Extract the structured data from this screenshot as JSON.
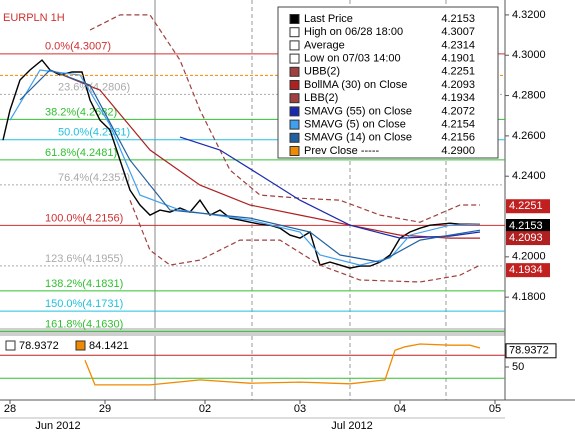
{
  "chart_data": {
    "type": "line",
    "title": "EURPLN 1H",
    "xlim": [
      0,
      101
    ],
    "xticks": [
      {
        "value": 2,
        "label": "28"
      },
      {
        "value": 21,
        "label": "29"
      },
      {
        "value": 41,
        "label": "02"
      },
      {
        "value": 60,
        "label": "03"
      },
      {
        "value": 80,
        "label": "04"
      },
      {
        "value": 99,
        "label": "05"
      }
    ],
    "x_groups": [
      {
        "value": 11.6,
        "label": "Jun 2012"
      },
      {
        "value": 70.4,
        "label": "Jul 2012"
      }
    ],
    "ylim": [
      4.1647,
      4.3274
    ],
    "yticks": [
      {
        "value": 4.32,
        "label": "4.3200"
      },
      {
        "value": 4.3,
        "label": "4.3000"
      },
      {
        "value": 4.28,
        "label": "4.2800"
      },
      {
        "value": 4.26,
        "label": "4.2600"
      },
      {
        "value": 4.24,
        "label": "4.2400"
      },
      {
        "value": 4.2,
        "label": "4.2000"
      },
      {
        "value": 4.18,
        "label": "4.1800"
      }
    ],
    "fib_levels": [
      {
        "value": 4.3007,
        "label": "0.0%(4.3007)",
        "color": "#d03030"
      },
      {
        "value": 4.2806,
        "label": "23.6%(4.2806)",
        "color": "#aaaaaa"
      },
      {
        "value": 4.2682,
        "label": "38.2%(4.2682)",
        "color": "#30c030"
      },
      {
        "value": 4.2581,
        "label": "50.0%(4.2581)",
        "color": "#20c0e0"
      },
      {
        "value": 4.2481,
        "label": "61.8%(4.2481)",
        "color": "#30c030"
      },
      {
        "value": 4.2357,
        "label": "76.4%(4.2357)",
        "color": "#aaaaaa"
      },
      {
        "value": 4.2156,
        "label": "100.0%(4.2156)",
        "color": "#d03030"
      },
      {
        "value": 4.1955,
        "label": "123.6%(4.1955)",
        "color": "#aaaaaa"
      },
      {
        "value": 4.1831,
        "label": "138.2%(4.1831)",
        "color": "#30c030"
      },
      {
        "value": 4.1731,
        "label": "150.0%(4.1731)",
        "color": "#20c0e0"
      },
      {
        "value": 4.163,
        "label": "161.8%(4.1630)",
        "color": "#30c030"
      }
    ],
    "series": [
      {
        "name": "Last Price",
        "legend_value": "4.2153",
        "color": "#000000",
        "x": [
          0.6,
          2,
          4,
          6,
          8.4,
          10,
          12,
          14.4,
          16.4,
          18,
          20,
          22,
          24,
          26,
          28,
          30,
          32,
          34,
          36,
          38,
          40,
          42,
          44,
          46,
          48,
          50,
          52,
          54,
          56,
          58,
          60,
          62,
          64,
          66,
          68,
          70,
          72,
          74,
          76,
          78,
          80,
          82,
          84,
          86,
          88,
          90,
          92,
          94,
          96
        ],
        "values": [
          4.2579,
          4.2728,
          4.2877,
          4.2927,
          4.2976,
          4.2927,
          4.2902,
          4.2917,
          4.2917,
          4.2778,
          4.2678,
          4.2629,
          4.248,
          4.2331,
          4.2257,
          4.2207,
          4.2232,
          4.2222,
          4.2242,
          4.2222,
          4.2281,
          4.2207,
          4.2232,
          4.2192,
          4.2182,
          4.2172,
          4.2162,
          4.2157,
          4.2142,
          4.2108,
          4.2093,
          4.2123,
          4.1959,
          4.1974,
          4.1959,
          4.1944,
          4.1954,
          4.1954,
          4.1974,
          4.2009,
          4.2093,
          4.2123,
          4.2142,
          4.2157,
          4.2162,
          4.2167,
          4.2162,
          4.2162,
          4.2162
        ]
      },
      {
        "name": "High on 06/28 18:00",
        "legend_value": "4.3007"
      },
      {
        "name": "Average",
        "legend_value": "4.2314"
      },
      {
        "name": "Low on 07/03 14:00",
        "legend_value": "4.1901"
      },
      {
        "name": "UBB(2)",
        "legend_value": "4.2251",
        "color": "#a04040",
        "dash": true,
        "x": [
          18,
          24,
          30,
          36,
          40,
          46,
          52,
          60,
          68,
          76,
          84,
          92,
          96
        ],
        "values": [
          4.3125,
          4.32,
          4.32,
          4.2976,
          4.2728,
          4.243,
          4.2306,
          4.2291,
          4.2281,
          4.2207,
          4.2172,
          4.2257,
          4.2257
        ]
      },
      {
        "name": "BollMA (30) on Close",
        "legend_value": "4.2093",
        "color": "#b02020",
        "x": [
          10,
          20,
          30,
          40,
          50,
          60,
          70,
          80,
          90,
          96
        ],
        "values": [
          4.2927,
          4.2827,
          4.253,
          4.2356,
          4.2257,
          4.2207,
          4.2157,
          4.2108,
          4.2093,
          4.2093
        ]
      },
      {
        "name": "LBB(2)",
        "legend_value": "4.1934",
        "color": "#a04040",
        "dash": true,
        "x": [
          26,
          30,
          34,
          40,
          48,
          56,
          64,
          72,
          84,
          92,
          96
        ],
        "values": [
          4.2281,
          4.2033,
          4.1959,
          4.1984,
          4.2083,
          4.2083,
          4.1959,
          4.1885,
          4.1875,
          4.1909,
          4.1959
        ]
      },
      {
        "name": "SMAVG (55) on Close",
        "legend_value": "4.2072",
        "color": "#1a2ab0",
        "x": [
          36,
          44,
          52,
          60,
          70,
          80,
          90,
          96
        ],
        "values": [
          4.2594,
          4.253,
          4.2406,
          4.2281,
          4.2157,
          4.2093,
          4.2103,
          4.2123
        ]
      },
      {
        "name": "SMAVG (5) on Close",
        "legend_value": "4.2154",
        "color": "#40a0f0",
        "x": [
          2,
          8,
          16,
          22,
          28,
          36,
          50,
          60,
          64,
          72,
          78,
          82,
          90,
          96
        ],
        "values": [
          4.2678,
          4.2927,
          4.2902,
          4.2654,
          4.2306,
          4.2232,
          4.2182,
          4.2123,
          4.2009,
          4.1959,
          4.1994,
          4.2108,
          4.2157,
          4.2162
        ]
      },
      {
        "name": "SMAVG (14) on Close",
        "legend_value": "4.2156",
        "color": "#2060a0",
        "x": [
          4,
          10,
          18,
          26,
          34,
          50,
          62,
          68,
          76,
          84,
          96
        ],
        "values": [
          4.2778,
          4.2927,
          4.2852,
          4.248,
          4.2232,
          4.2192,
          4.2123,
          4.2009,
          4.1974,
          4.2083,
          4.2132
        ]
      },
      {
        "name": "Prev Close -----",
        "legend_value": "4.2900",
        "color": "#f08a00",
        "level": 4.29
      }
    ],
    "price_tags": [
      {
        "value": 4.2251,
        "label": "4.2251",
        "color": "#c02020"
      },
      {
        "value": 4.2153,
        "label": "4.2153",
        "color": "#000000"
      },
      {
        "value": 4.2093,
        "label": "4.2093",
        "color": "#b02020"
      },
      {
        "value": 4.1934,
        "label": "4.1934",
        "color": "#c02020"
      }
    ],
    "lower": {
      "ylim": [
        0,
        100
      ],
      "yticks": [
        50
      ],
      "legend": [
        {
          "label": "78.9372",
          "color": "#ffffff"
        },
        {
          "label": "84.1421",
          "color": "#f08a00"
        }
      ],
      "levels": [
        {
          "value": 71,
          "color": "#c02020"
        },
        {
          "value": 30,
          "color": "#30c030"
        }
      ],
      "tag": {
        "value": 78.9372,
        "label": "78.9372"
      },
      "series": {
        "color": "#f08a00",
        "x": [
          17,
          19,
          30,
          40,
          50,
          60,
          70,
          77,
          79,
          81,
          84,
          90,
          94,
          96
        ],
        "values": [
          62,
          18,
          18,
          27,
          21,
          23,
          20,
          27,
          80,
          86,
          91,
          89,
          89,
          84
        ]
      }
    }
  }
}
